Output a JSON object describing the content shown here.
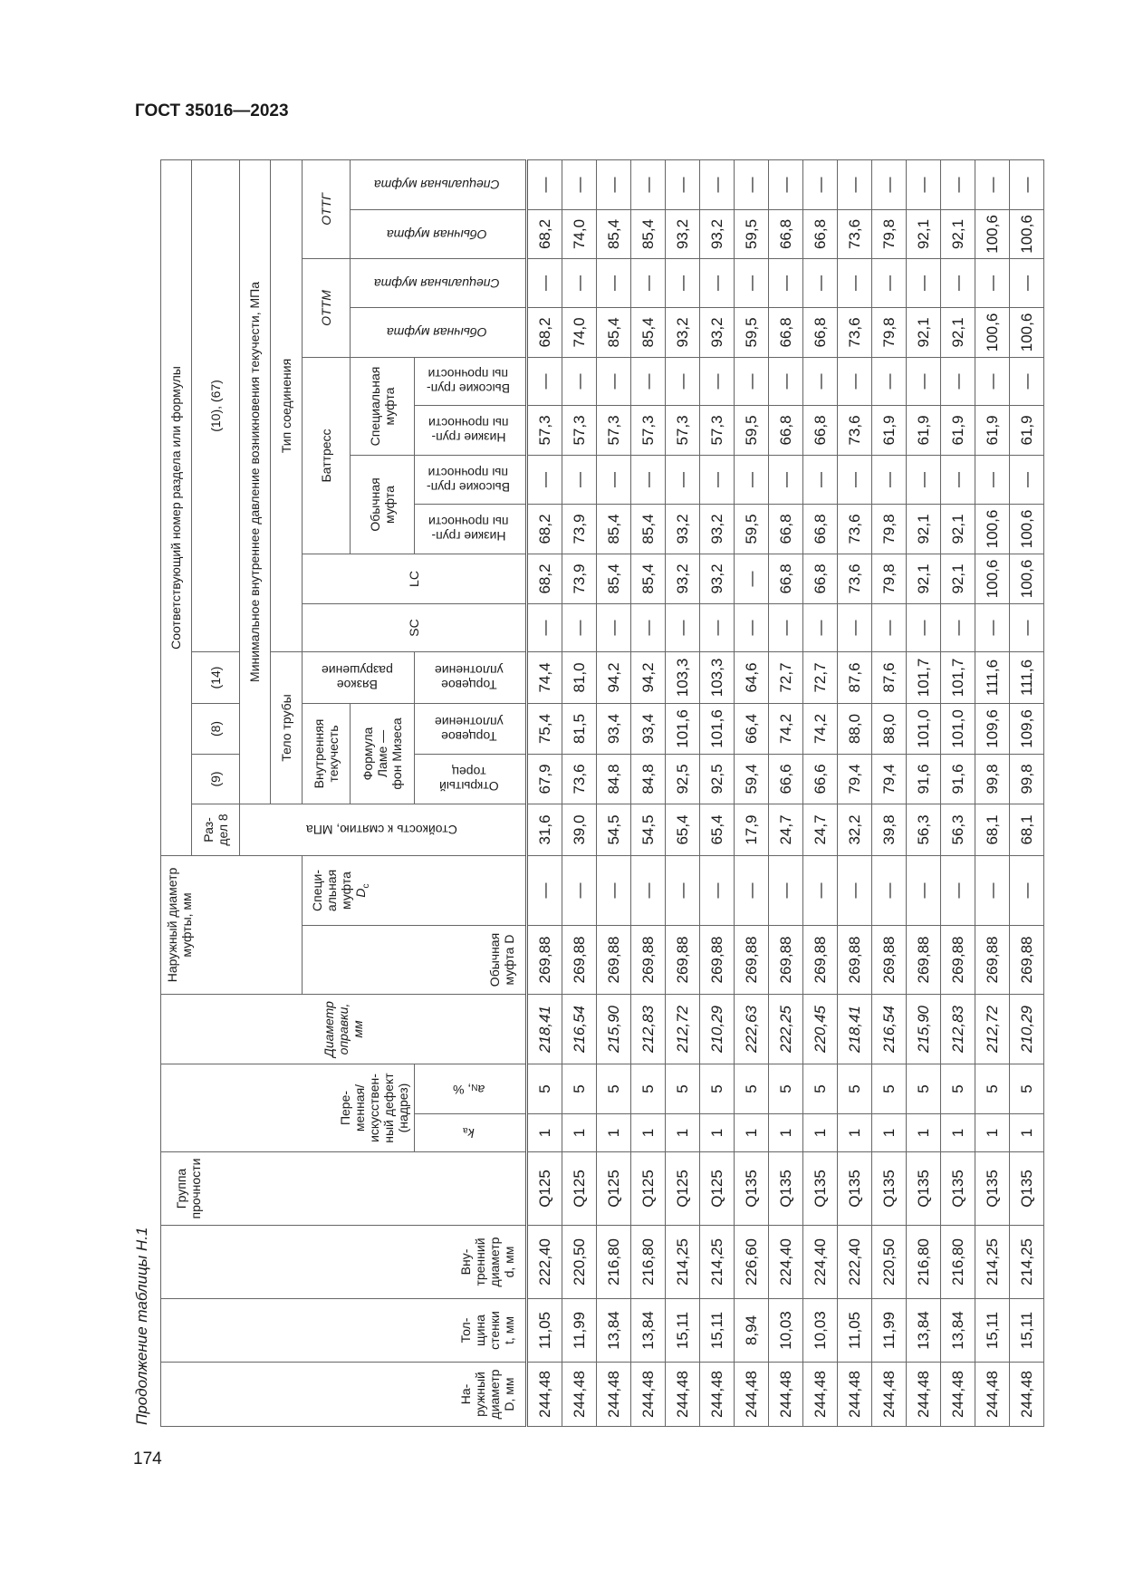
{
  "document": {
    "title": "ГОСТ 35016—2023",
    "page_number": "174",
    "caption": "Продолжение таблицы Н.1"
  },
  "headers": {
    "D": [
      "На-",
      "ружный",
      "диаметр",
      "D, мм"
    ],
    "t": [
      "Тол-",
      "щина",
      "стенки",
      "t, мм"
    ],
    "d": [
      "Вну-",
      "тренний",
      "диаметр",
      "d, мм"
    ],
    "group": [
      "Группа",
      "прочности"
    ],
    "defect": [
      "Пере-",
      "менная/",
      "искусствен-",
      "ный дефект",
      "(надрез)"
    ],
    "ka": {
      "main": "k",
      "sub": "a"
    },
    "aN": {
      "main": "a",
      "sub": "N",
      "suffix": ", %"
    },
    "mandrel": [
      "Диаметр",
      "оправки,",
      "мм"
    ],
    "coupling_od": [
      "Наружный диаметр",
      "муфты, мм"
    ],
    "coupling_regular": [
      "Обычная",
      "муфта D"
    ],
    "coupling_special": {
      "lines": [
        "Специ-",
        "альная",
        "муфта"
      ],
      "symbol": "D",
      "sub": "c"
    },
    "section_title": "Соответствующий номер раздела или формулы",
    "section8": [
      "Раз-",
      "дел 8"
    ],
    "f9": "(9)",
    "f8": "(8)",
    "f14": "(14)",
    "f10_67": "(10), (67)",
    "collapse": "Стойкость к смятию, МПа",
    "min_pressure": "Минимальное внутреннее давление возникновения текучести, МПа",
    "pipe_body": "Тело трубы",
    "connection_type": "Тип соединения",
    "internal_yield": [
      "Внутренняя",
      "текучесть"
    ],
    "ductile": [
      "Вязкое",
      "разрушение"
    ],
    "lame": [
      "Формула",
      "Ламе —",
      "фон Мизеса"
    ],
    "open_end": [
      "Открытый",
      "торец"
    ],
    "end_seal": [
      "Торцевое",
      "уплотнение"
    ],
    "sc": "SC",
    "lc": "LC",
    "buttress": "Баттресс",
    "regular_coupling": [
      "Обычная",
      "муфта"
    ],
    "special_coupling": [
      "Специальная",
      "муфта"
    ],
    "low_grades": [
      "Низкие груп-",
      "пы прочности"
    ],
    "high_grades": [
      "Высокие груп-",
      "пы прочности"
    ],
    "ottm": "ОТТМ",
    "ottg": "ОТТГ",
    "regular_coupling_1line": "Обычная муфта",
    "special_coupling_1line": "Специальная муфта"
  },
  "rows": [
    [
      "244,48",
      "11,05",
      "222,40",
      "Q125",
      "1",
      "5",
      "218,41",
      "269,88",
      "—",
      "31,6",
      "67,9",
      "75,4",
      "74,4",
      "—",
      "68,2",
      "68,2",
      "—",
      "57,3",
      "—",
      "68,2",
      "—",
      "68,2",
      "—"
    ],
    [
      "244,48",
      "11,99",
      "220,50",
      "Q125",
      "1",
      "5",
      "216,54",
      "269,88",
      "—",
      "39,0",
      "73,6",
      "81,5",
      "81,0",
      "—",
      "73,9",
      "73,9",
      "—",
      "57,3",
      "—",
      "74,0",
      "—",
      "74,0",
      "—"
    ],
    [
      "244,48",
      "13,84",
      "216,80",
      "Q125",
      "1",
      "5",
      "215,90",
      "269,88",
      "—",
      "54,5",
      "84,8",
      "93,4",
      "94,2",
      "—",
      "85,4",
      "85,4",
      "—",
      "57,3",
      "—",
      "85,4",
      "—",
      "85,4",
      "—"
    ],
    [
      "244,48",
      "13,84",
      "216,80",
      "Q125",
      "1",
      "5",
      "212,83",
      "269,88",
      "—",
      "54,5",
      "84,8",
      "93,4",
      "94,2",
      "—",
      "85,4",
      "85,4",
      "—",
      "57,3",
      "—",
      "85,4",
      "—",
      "85,4",
      "—"
    ],
    [
      "244,48",
      "15,11",
      "214,25",
      "Q125",
      "1",
      "5",
      "212,72",
      "269,88",
      "—",
      "65,4",
      "92,5",
      "101,6",
      "103,3",
      "—",
      "93,2",
      "93,2",
      "—",
      "57,3",
      "—",
      "93,2",
      "—",
      "93,2",
      "—"
    ],
    [
      "244,48",
      "15,11",
      "214,25",
      "Q125",
      "1",
      "5",
      "210,29",
      "269,88",
      "—",
      "65,4",
      "92,5",
      "101,6",
      "103,3",
      "—",
      "93,2",
      "93,2",
      "—",
      "57,3",
      "—",
      "93,2",
      "—",
      "93,2",
      "—"
    ],
    [
      "244,48",
      "8,94",
      "226,60",
      "Q135",
      "1",
      "5",
      "222,63",
      "269,88",
      "—",
      "17,9",
      "59,4",
      "66,4",
      "64,6",
      "—",
      "—",
      "59,5",
      "—",
      "59,5",
      "—",
      "59,5",
      "—",
      "59,5",
      "—"
    ],
    [
      "244,48",
      "10,03",
      "224,40",
      "Q135",
      "1",
      "5",
      "222,25",
      "269,88",
      "—",
      "24,7",
      "66,6",
      "74,2",
      "72,7",
      "—",
      "66,8",
      "66,8",
      "—",
      "66,8",
      "—",
      "66,8",
      "—",
      "66,8",
      "—"
    ],
    [
      "244,48",
      "10,03",
      "224,40",
      "Q135",
      "1",
      "5",
      "220,45",
      "269,88",
      "—",
      "24,7",
      "66,6",
      "74,2",
      "72,7",
      "—",
      "66,8",
      "66,8",
      "—",
      "66,8",
      "—",
      "66,8",
      "—",
      "66,8",
      "—"
    ],
    [
      "244,48",
      "11,05",
      "222,40",
      "Q135",
      "1",
      "5",
      "218,41",
      "269,88",
      "—",
      "32,2",
      "79,4",
      "88,0",
      "87,6",
      "—",
      "73,6",
      "73,6",
      "—",
      "73,6",
      "—",
      "73,6",
      "—",
      "73,6",
      "—"
    ],
    [
      "244,48",
      "11,99",
      "220,50",
      "Q135",
      "1",
      "5",
      "216,54",
      "269,88",
      "—",
      "39,8",
      "79,4",
      "88,0",
      "87,6",
      "—",
      "79,8",
      "79,8",
      "—",
      "61,9",
      "—",
      "79,8",
      "—",
      "79,8",
      "—"
    ],
    [
      "244,48",
      "13,84",
      "216,80",
      "Q135",
      "1",
      "5",
      "215,90",
      "269,88",
      "—",
      "56,3",
      "91,6",
      "101,0",
      "101,7",
      "—",
      "92,1",
      "92,1",
      "—",
      "61,9",
      "—",
      "92,1",
      "—",
      "92,1",
      "—"
    ],
    [
      "244,48",
      "13,84",
      "216,80",
      "Q135",
      "1",
      "5",
      "212,83",
      "269,88",
      "—",
      "56,3",
      "91,6",
      "101,0",
      "101,7",
      "—",
      "92,1",
      "92,1",
      "—",
      "61,9",
      "—",
      "92,1",
      "—",
      "92,1",
      "—"
    ],
    [
      "244,48",
      "15,11",
      "214,25",
      "Q135",
      "1",
      "5",
      "212,72",
      "269,88",
      "—",
      "68,1",
      "99,8",
      "109,6",
      "111,6",
      "—",
      "100,6",
      "100,6",
      "—",
      "61,9",
      "—",
      "100,6",
      "—",
      "100,6",
      "—"
    ],
    [
      "244,48",
      "15,11",
      "214,25",
      "Q135",
      "1",
      "5",
      "210,29",
      "269,88",
      "—",
      "68,1",
      "99,8",
      "109,6",
      "111,6",
      "—",
      "100,6",
      "100,6",
      "—",
      "61,9",
      "—",
      "100,6",
      "—",
      "100,6",
      "—"
    ]
  ]
}
